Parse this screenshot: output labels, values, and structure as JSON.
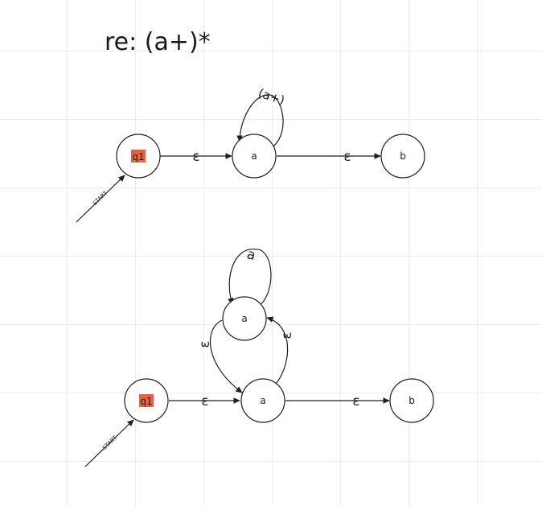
{
  "title": "re: (a+)*",
  "highlight_color": "#e8613a",
  "diagram1": {
    "start_label": "START",
    "states": {
      "q1": "q1",
      "a": "a",
      "b": "b"
    },
    "edges": {
      "q1_a": "ε",
      "a_b": "ε",
      "a_loop": "(a+)"
    }
  },
  "diagram2": {
    "start_label": "START",
    "states": {
      "q1": "q1",
      "a_top": "a",
      "a": "a",
      "b": "b"
    },
    "edges": {
      "q1_a": "ε",
      "a_b": "ε",
      "top_loop": "a",
      "a_to_top": "ε",
      "top_to_a": "ε"
    }
  }
}
